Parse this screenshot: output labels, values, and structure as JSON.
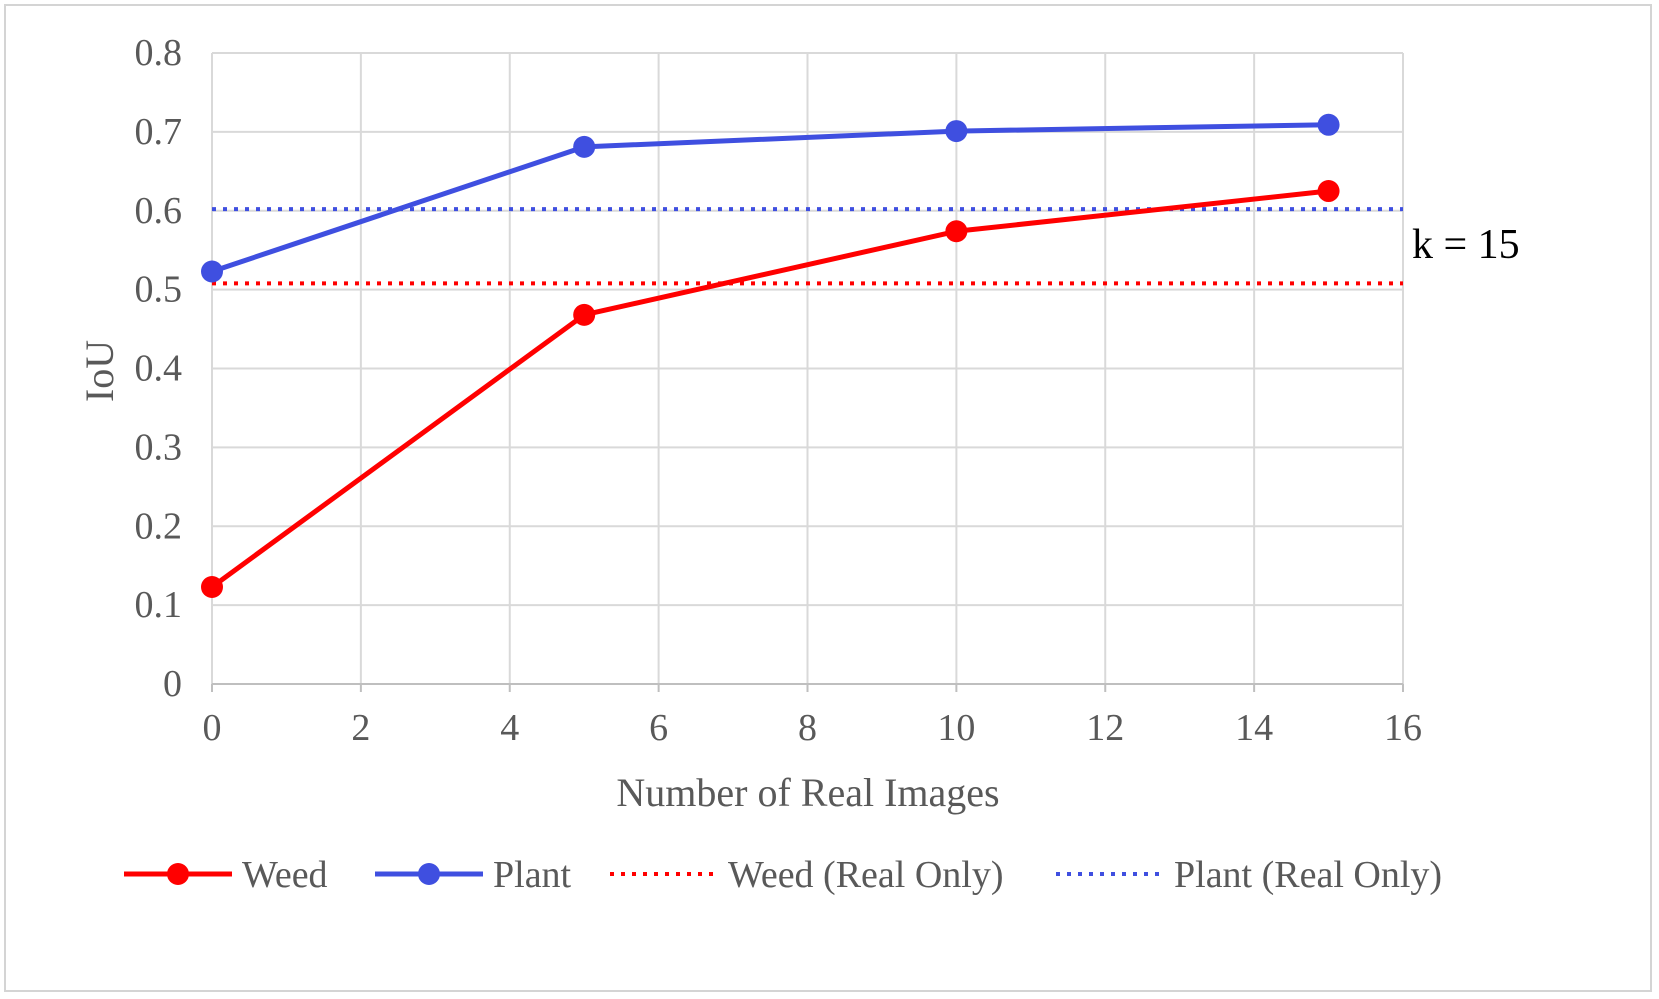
{
  "chart_data": {
    "type": "line",
    "title": "",
    "xlabel": "Number of Real Images",
    "ylabel": "IoU",
    "xlim": [
      0,
      16
    ],
    "ylim": [
      0,
      0.8
    ],
    "xticks": [
      "0",
      "2",
      "4",
      "6",
      "8",
      "10",
      "12",
      "14",
      "16"
    ],
    "yticks": [
      "0",
      "0.1",
      "0.2",
      "0.3",
      "0.4",
      "0.5",
      "0.6",
      "0.7",
      "0.8"
    ],
    "grid": true,
    "legend_position": "bottom",
    "annotation": "k = 15",
    "series": [
      {
        "name": "Weed",
        "style": "solid-marker",
        "color": "#ff0000",
        "x": [
          0,
          5,
          10,
          15
        ],
        "y": [
          0.123,
          0.468,
          0.574,
          0.625
        ]
      },
      {
        "name": "Plant",
        "style": "solid-marker",
        "color": "#3f4fe0",
        "x": [
          0,
          5,
          10,
          15
        ],
        "y": [
          0.523,
          0.681,
          0.701,
          0.709
        ]
      },
      {
        "name": "Weed (Real Only)",
        "style": "dotted",
        "color": "#ff0000",
        "x": [
          0,
          16
        ],
        "y": [
          0.508,
          0.508
        ]
      },
      {
        "name": "Plant (Real Only)",
        "style": "dotted",
        "color": "#3f4fe0",
        "x": [
          0,
          16
        ],
        "y": [
          0.602,
          0.602
        ]
      }
    ]
  }
}
